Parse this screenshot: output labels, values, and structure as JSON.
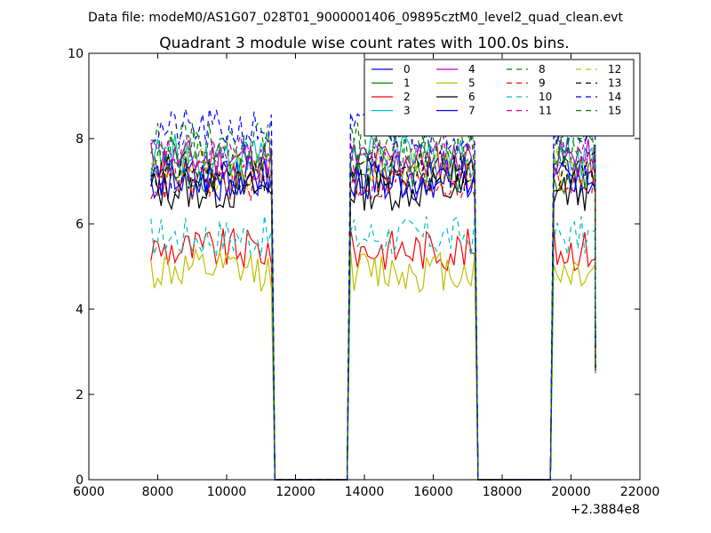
{
  "suptitle": "Data file: modeM0/AS1G07_028T01_9000001406_09895cztM0_level2_quad_clean.evt",
  "chart_data": {
    "type": "line",
    "title": "Quadrant 3 module wise count rates with 100.0s bins.",
    "xlabel": "",
    "ylabel": "",
    "x_offset_label": "+2.3884e8",
    "xlim": [
      6000,
      22000
    ],
    "ylim": [
      0,
      10
    ],
    "x_ticks": [
      6000,
      8000,
      10000,
      12000,
      14000,
      16000,
      18000,
      20000,
      22000
    ],
    "x_tick_labels": [
      "6000",
      "8000",
      "10000",
      "12000",
      "14000",
      "16000",
      "18000",
      "20000",
      "22000"
    ],
    "y_ticks": [
      0,
      2,
      4,
      6,
      8,
      10
    ],
    "y_tick_labels": [
      "0",
      "2",
      "4",
      "6",
      "8",
      "10"
    ],
    "grid": false,
    "legend": {
      "position": "top-right",
      "columns": 4
    },
    "series": [
      {
        "name": "0",
        "color": "#0000ff",
        "dashed": false,
        "base": 7.0
      },
      {
        "name": "1",
        "color": "#008000",
        "dashed": false,
        "base": 7.2
      },
      {
        "name": "2",
        "color": "#ff0000",
        "dashed": false,
        "base": 5.4
      },
      {
        "name": "3",
        "color": "#00bfbf",
        "dashed": false,
        "base": 7.6
      },
      {
        "name": "4",
        "color": "#bf00bf",
        "dashed": false,
        "base": 7.5
      },
      {
        "name": "5",
        "color": "#bfbf00",
        "dashed": false,
        "base": 4.9
      },
      {
        "name": "6",
        "color": "#000000",
        "dashed": false,
        "base": 6.8
      },
      {
        "name": "7",
        "color": "#0000ff",
        "dashed": false,
        "base": 7.1
      },
      {
        "name": "8",
        "color": "#008000",
        "dashed": true,
        "base": 7.9
      },
      {
        "name": "9",
        "color": "#ff0000",
        "dashed": true,
        "base": 7.0
      },
      {
        "name": "10",
        "color": "#00bfbf",
        "dashed": true,
        "base": 5.7
      },
      {
        "name": "11",
        "color": "#bf00bf",
        "dashed": true,
        "base": 7.6
      },
      {
        "name": "12",
        "color": "#bfbf00",
        "dashed": true,
        "base": 7.3
      },
      {
        "name": "13",
        "color": "#000000",
        "dashed": true,
        "base": 7.2
      },
      {
        "name": "14",
        "color": "#0000ff",
        "dashed": true,
        "base": 8.2
      },
      {
        "name": "15",
        "color": "#008000",
        "dashed": true,
        "base": 7.7
      }
    ],
    "segments": [
      {
        "start": 7800,
        "end": 11300,
        "step": 100
      },
      {
        "start": 13600,
        "end": 17200,
        "step": 100
      },
      {
        "start": 19500,
        "end": 20700,
        "step": 100
      }
    ],
    "gaps": [
      [
        11400,
        13500
      ],
      [
        17300,
        19400
      ]
    ],
    "gap_value": 0
  }
}
